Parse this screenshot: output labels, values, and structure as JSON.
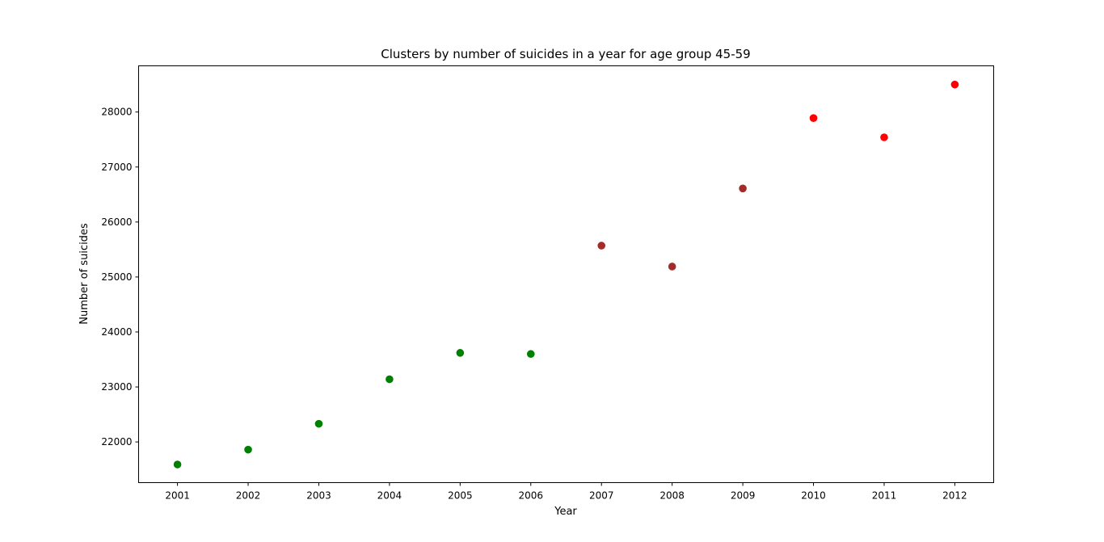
{
  "chart_data": {
    "type": "scatter",
    "title": "Clusters by number of suicides in a year for age group 45-59",
    "xlabel": "Year",
    "ylabel": "Number of suicides",
    "x_ticks": [
      2001,
      2002,
      2003,
      2004,
      2005,
      2006,
      2007,
      2008,
      2009,
      2010,
      2011,
      2012
    ],
    "y_ticks": [
      22000,
      23000,
      24000,
      25000,
      26000,
      27000,
      28000
    ],
    "xlim": [
      2000.45,
      2012.55
    ],
    "ylim": [
      21260,
      28840
    ],
    "grid": false,
    "legend": "none",
    "points": [
      {
        "x": 2001,
        "y": 21590,
        "color": "#008000"
      },
      {
        "x": 2002,
        "y": 21860,
        "color": "#008000"
      },
      {
        "x": 2003,
        "y": 22330,
        "color": "#008000"
      },
      {
        "x": 2004,
        "y": 23140,
        "color": "#008000"
      },
      {
        "x": 2005,
        "y": 23620,
        "color": "#008000"
      },
      {
        "x": 2006,
        "y": 23600,
        "color": "#008000"
      },
      {
        "x": 2007,
        "y": 25570,
        "color": "#a52a2a"
      },
      {
        "x": 2008,
        "y": 25190,
        "color": "#a52a2a"
      },
      {
        "x": 2009,
        "y": 26610,
        "color": "#a52a2a"
      },
      {
        "x": 2010,
        "y": 27890,
        "color": "#ff0000"
      },
      {
        "x": 2011,
        "y": 27540,
        "color": "#ff0000"
      },
      {
        "x": 2012,
        "y": 28500,
        "color": "#ff0000"
      }
    ]
  }
}
